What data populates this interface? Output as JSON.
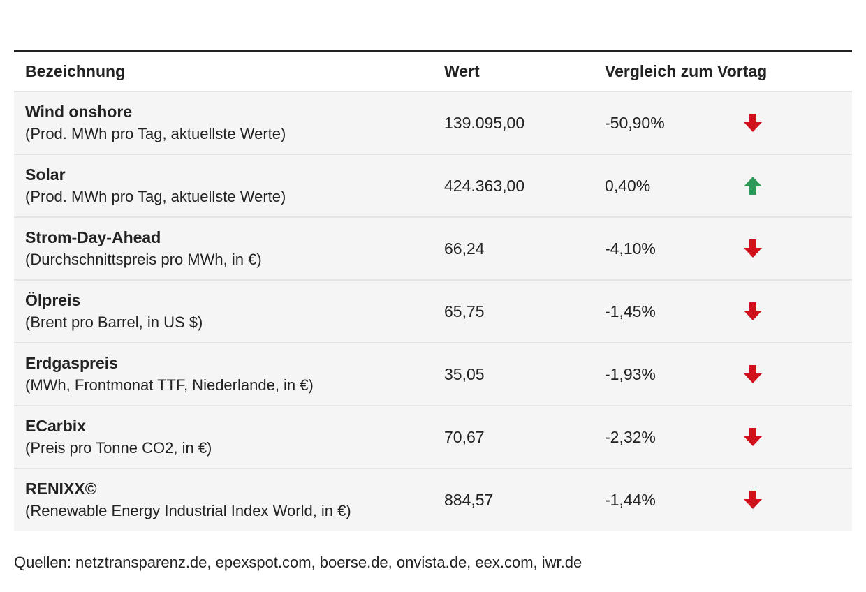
{
  "colors": {
    "down": "#d0101a",
    "up": "#2e9a5a",
    "row_bg": "#f5f5f5",
    "top_rule": "#222222"
  },
  "chart_data": {
    "type": "table",
    "columns": [
      "Bezeichnung",
      "Wert",
      "Vergleich zum Vortag"
    ],
    "rows": [
      {
        "name": "Wind onshore",
        "sub": "(Prod. MWh pro Tag, aktuellste Werte)",
        "value": "139.095,00",
        "change": "-50,90%",
        "direction": "down"
      },
      {
        "name": "Solar",
        "sub": "(Prod. MWh pro Tag, aktuellste Werte)",
        "value": "424.363,00",
        "change": "0,40%",
        "direction": "up"
      },
      {
        "name": "Strom-Day-Ahead",
        "sub": "(Durchschnittspreis pro MWh, in €)",
        "value": "66,24",
        "change": "-4,10%",
        "direction": "down"
      },
      {
        "name": "Ölpreis",
        "sub": "(Brent pro Barrel, in US $)",
        "value": "65,75",
        "change": "-1,45%",
        "direction": "down"
      },
      {
        "name": "Erdgaspreis",
        "sub": "(MWh, Frontmonat TTF, Niederlande, in €)",
        "value": "35,05",
        "change": "-1,93%",
        "direction": "down"
      },
      {
        "name": "ECarbix",
        "sub": "(Preis pro Tonne CO2, in €)",
        "value": "70,67",
        "change": "-2,32%",
        "direction": "down"
      },
      {
        "name": "RENIXX©",
        "sub": "(Renewable Energy Industrial Index World, in €)",
        "value": "884,57",
        "change": "-1,44%",
        "direction": "down"
      }
    ]
  },
  "footer": {
    "source": "Quellen: netztransparenz.de, epexspot.com, boerse.de, onvista.de, eex.com, iwr.de"
  }
}
